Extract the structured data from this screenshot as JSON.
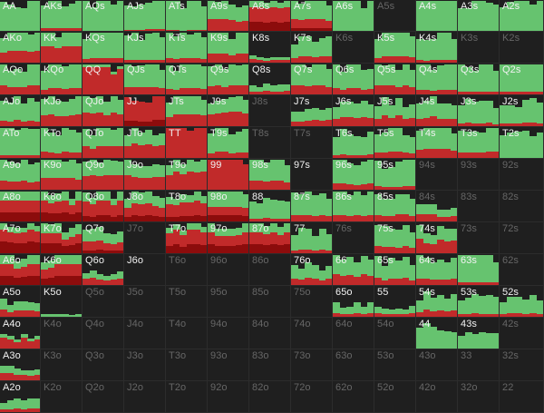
{
  "chart_data": {
    "type": "heatmap",
    "title": "",
    "colors": {
      "call": "#66c36f",
      "raise": "#c12a2a",
      "allin": "#8c0c0c",
      "fold": "#1f1f1f",
      "label_active": "#f2f2f2",
      "label_inactive": "#666666"
    },
    "ranks": [
      "A",
      "K",
      "Q",
      "J",
      "T",
      "9",
      "8",
      "7",
      "6",
      "5",
      "4",
      "3",
      "2"
    ],
    "inactive": [
      "A5s",
      "K6s",
      "K3s",
      "K2s",
      "J8s",
      "T8s",
      "T7s",
      "94s",
      "93s",
      "92s",
      "84s",
      "83s",
      "82s",
      "76s",
      "73s",
      "72s",
      "62s",
      "J7o",
      "T6o",
      "96o",
      "86o",
      "Q5o",
      "J5o",
      "T5o",
      "95o",
      "85o",
      "75o",
      "64o",
      "54o",
      "K4o",
      "Q4o",
      "J4o",
      "T4o",
      "94o",
      "84o",
      "74o",
      "K3o",
      "Q3o",
      "J3o",
      "T3o",
      "93o",
      "83o",
      "73o",
      "63o",
      "53o",
      "43o",
      "K2o",
      "Q2o",
      "J2o",
      "T2o",
      "92o",
      "82o",
      "72o",
      "62o",
      "52o",
      "42o",
      "32o",
      "33",
      "22",
      "42s",
      "32s"
    ],
    "frequencies": {
      "AA": [
        1,
        0,
        0
      ],
      "AKs": [
        0.9,
        0.1,
        0
      ],
      "AQs": [
        1,
        0,
        0
      ],
      "AJs": [
        0.95,
        0.05,
        0
      ],
      "ATs": [
        0.98,
        0.02,
        0
      ],
      "A9s": [
        0.6,
        0.4,
        0
      ],
      "A8s": [
        0.2,
        0.5,
        0.3
      ],
      "A7s": [
        0.6,
        0.3,
        0.1
      ],
      "A6s": [
        1,
        0,
        0
      ],
      "A4s": [
        1,
        0,
        0
      ],
      "A3s": [
        1,
        0,
        0
      ],
      "A2s": [
        1,
        0,
        0
      ],
      "AKo": [
        0.6,
        0.4,
        0
      ],
      "KK": [
        0.45,
        0.55,
        0
      ],
      "KQs": [
        0.85,
        0.15,
        0
      ],
      "KJs": [
        0.9,
        0.1,
        0
      ],
      "KTs": [
        0.85,
        0.15,
        0
      ],
      "K9s": [
        0.7,
        0.3,
        0
      ],
      "K8s": [
        0.1,
        0.1,
        0
      ],
      "K7s": [
        0.6,
        0.2,
        0
      ],
      "K5s": [
        0.8,
        0.2,
        0
      ],
      "K4s": [
        0.9,
        0.1,
        0
      ],
      "AQo": [
        0.7,
        0.3,
        0
      ],
      "KQo": [
        0.8,
        0.2,
        0
      ],
      "QQ": [
        0.1,
        0.9,
        0
      ],
      "QJs": [
        0.75,
        0.25,
        0
      ],
      "QTs": [
        0.8,
        0.2,
        0
      ],
      "Q9s": [
        0.7,
        0.3,
        0
      ],
      "Q8s": [
        0.2,
        0.1,
        0
      ],
      "Q7s": [
        0.7,
        0.3,
        0
      ],
      "Q6s": [
        0.8,
        0.2,
        0
      ],
      "Q5s": [
        0.7,
        0.3,
        0
      ],
      "Q4s": [
        0.85,
        0.15,
        0
      ],
      "Q3s": [
        0.9,
        0.1,
        0
      ],
      "Q2s": [
        0.9,
        0.1,
        0
      ],
      "AJo": [
        0.8,
        0.2,
        0
      ],
      "KJo": [
        0.6,
        0.4,
        0
      ],
      "QJo": [
        0.55,
        0.45,
        0
      ],
      "JJ": [
        0,
        0.8,
        0.2
      ],
      "JTs": [
        0.6,
        0.4,
        0
      ],
      "J9s": [
        0.5,
        0.5,
        0
      ],
      "J7s": [
        0.4,
        0.2,
        0
      ],
      "J6s": [
        0.5,
        0.3,
        0
      ],
      "J5s": [
        0.5,
        0.3,
        0
      ],
      "J4s": [
        0.6,
        0.3,
        0
      ],
      "J3s": [
        0.7,
        0.1,
        0
      ],
      "J2s": [
        0.7,
        0.1,
        0
      ],
      "ATo": [
        0.9,
        0.1,
        0
      ],
      "KTo": [
        0.8,
        0.2,
        0
      ],
      "QTo": [
        0.6,
        0.4,
        0
      ],
      "JTo": [
        0.5,
        0.5,
        0
      ],
      "TT": [
        0,
        1,
        0
      ],
      "T9s": [
        0.8,
        0.2,
        0
      ],
      "T6s": [
        0.7,
        0.1,
        0
      ],
      "T5s": [
        0.7,
        0.2,
        0
      ],
      "T4s": [
        0.7,
        0.3,
        0
      ],
      "T3s": [
        0.8,
        0.2,
        0
      ],
      "T2s": [
        0.8,
        0,
        0
      ],
      "A9o": [
        0.7,
        0.3,
        0
      ],
      "K9o": [
        0.6,
        0.4,
        0
      ],
      "Q9o": [
        0.5,
        0.5,
        0
      ],
      "J9o": [
        0.5,
        0.5,
        0
      ],
      "T9o": [
        0.4,
        0.6,
        0
      ],
      "99": [
        0,
        1,
        0
      ],
      "98s": [
        0.7,
        0.3,
        0
      ],
      "96s": [
        0.8,
        0.2,
        0
      ],
      "95s": [
        0.8,
        0.1,
        0
      ],
      "A8o": [
        0.3,
        0.4,
        0.3
      ],
      "K8o": [
        0.3,
        0.4,
        0.3
      ],
      "Q8o": [
        0.3,
        0.5,
        0.2
      ],
      "J8o": [
        0.4,
        0.4,
        0.2
      ],
      "T8o": [
        0.3,
        0.5,
        0.2
      ],
      "98o": [
        0.5,
        0.3,
        0.2
      ],
      "88": [
        0.6,
        0.1,
        0
      ],
      "87s": [
        0.7,
        0.2,
        0
      ],
      "86s": [
        0.7,
        0.2,
        0
      ],
      "85s": [
        0.6,
        0.2,
        0
      ],
      "84s": [
        0.3,
        0.2,
        0
      ],
      "A7o": [
        0.2,
        0.4,
        0.4
      ],
      "K7o": [
        0.3,
        0.3,
        0.3
      ],
      "Q7o": [
        0.4,
        0.3,
        0.1
      ],
      "T7o": [
        0.2,
        0.5,
        0.3
      ],
      "97o": [
        0.3,
        0.4,
        0.3
      ],
      "87o": [
        0.3,
        0.4,
        0.3
      ],
      "77": [
        0.6,
        0.1,
        0
      ],
      "75s": [
        0.6,
        0.2,
        0
      ],
      "74s": [
        0.4,
        0.4,
        0
      ],
      "A6o": [
        0.3,
        0.4,
        0.3
      ],
      "K6o": [
        0.3,
        0.4,
        0.3
      ],
      "Q6o": [
        0.2,
        0.2,
        0
      ],
      "76o": [
        0.4,
        0.2,
        0
      ],
      "66": [
        0.5,
        0.3,
        0
      ],
      "65s": [
        0.6,
        0.2,
        0
      ],
      "64s": [
        0.7,
        0.2,
        0
      ],
      "63s": [
        0.9,
        0.1,
        0
      ],
      "A5o": [
        0.3,
        0.2,
        0
      ],
      "K5o": [
        0.1,
        0,
        0
      ],
      "65o": [
        0.3,
        0.1,
        0
      ],
      "55": [
        0.2,
        0.1,
        0
      ],
      "54s": [
        0.5,
        0.2,
        0
      ],
      "53s": [
        0.6,
        0.1,
        0
      ],
      "52s": [
        0.5,
        0.1,
        0
      ],
      "A4o": [
        0.1,
        0.3,
        0
      ],
      "44": [
        0.7,
        0,
        0
      ],
      "43s": [
        0.5,
        0,
        0
      ],
      "A3o": [
        0.2,
        0.2,
        0
      ],
      "A2o": [
        0.3,
        0.1,
        0
      ]
    }
  }
}
